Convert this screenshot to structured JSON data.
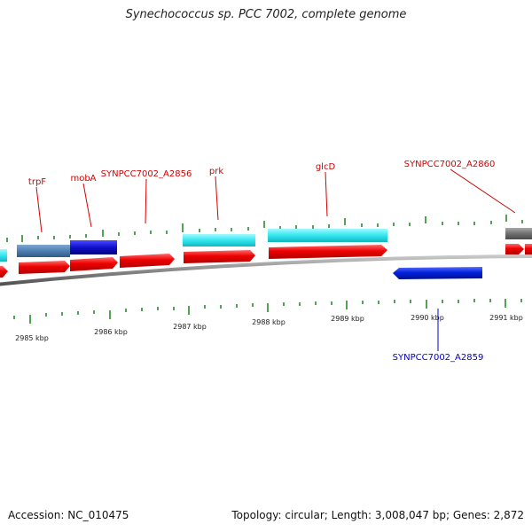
{
  "title": "Synechococcus sp. PCC 7002, complete genome",
  "footer": {
    "accession": "Accession: NC_010475",
    "stats": "Topology: circular; Length: 3,008,047 bp; Genes: 2,872"
  },
  "scale": {
    "unit": "kbp",
    "labels": [
      "2985 kbp",
      "2986 kbp",
      "2987 kbp",
      "2988 kbp",
      "2989 kbp",
      "2990 kbp",
      "2991 kbp"
    ]
  },
  "gene_labels": {
    "forward": [
      "trpF",
      "mobA",
      "SYNPCC7002_A2856",
      "prk",
      "glcD",
      "SYNPCC7002_A2860"
    ],
    "reverse": [
      "SYNPCC7002_A2859"
    ]
  },
  "colors": {
    "forward_gene": "#ee0000",
    "reverse_gene": "#0022dd",
    "rna_track": "#33e6ee",
    "feature_steel": "#4f7fb0",
    "feature_blue": "#1010cc",
    "feature_gray": "#707070",
    "backbone": "#8a8a8a",
    "tick": "#2a8a2a",
    "forward_label": "#d40000",
    "reverse_label": "#0000cc"
  }
}
